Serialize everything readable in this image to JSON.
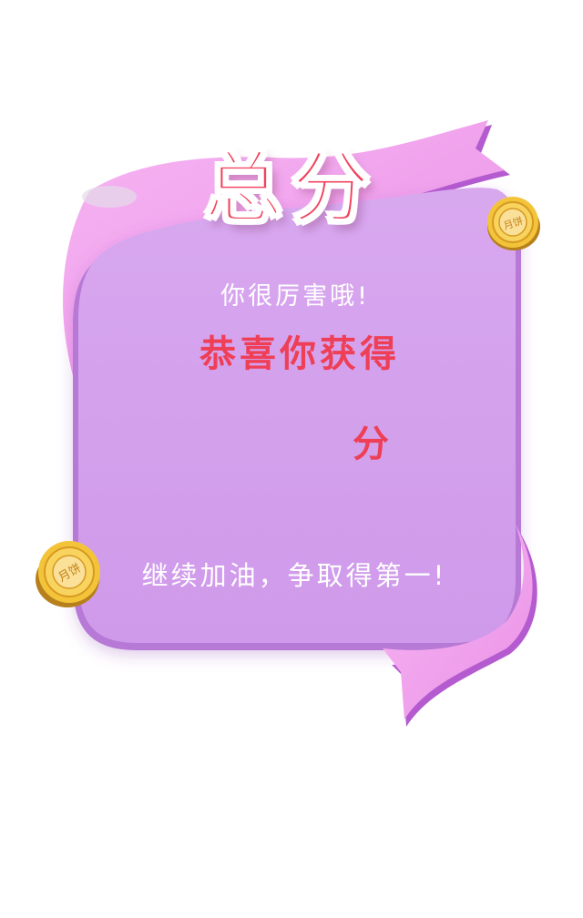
{
  "card": {
    "title": "总分",
    "praise": "你很厉害哦!",
    "congrats": "恭喜你获得",
    "score_value": "",
    "score_unit": "分",
    "encourage": "继续加油，争取得第一!"
  },
  "decorations": {
    "mooncake_stamp": "月饼"
  },
  "colors": {
    "card_fill": "#d3a0ec",
    "ribbon_fill": "#f4a8ee",
    "ribbon_edge": "#b45bd0",
    "title_red": "#f0435e",
    "score_red": "#ef3f57",
    "mooncake_gold": "#f3c43a"
  }
}
